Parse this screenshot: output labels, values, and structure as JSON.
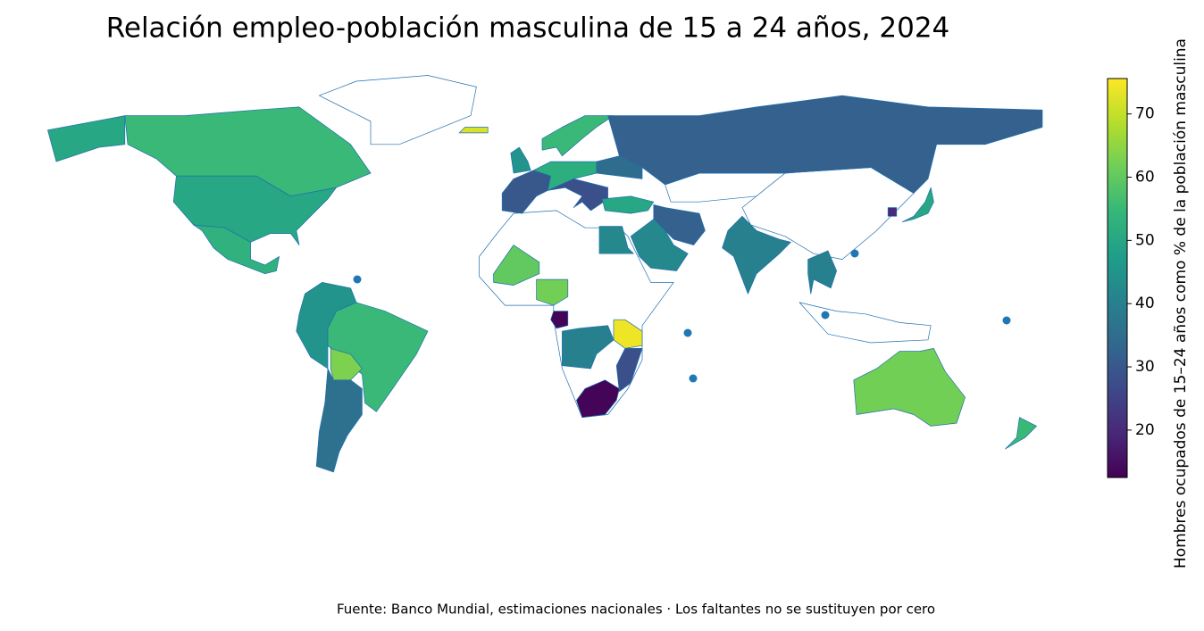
{
  "chart_data": {
    "type": "choropleth",
    "title": "Relación empleo-población masculina de 15 a 24 años, 2024",
    "colorbar_label": "Hombres ocupados de 15–24 años como % de la población masculina",
    "source": "Fuente: Banco Mundial, estimaciones nacionales · Los faltantes no se sustituyen por cero",
    "colormap": "viridis",
    "clim": [
      12.5,
      75.6
    ],
    "cticks": [
      20,
      30,
      40,
      50,
      60,
      70
    ],
    "values": [
      55,
      50,
      53,
      45,
      55,
      63,
      36,
      30,
      52,
      28,
      55,
      45,
      72,
      50,
      35,
      32,
      32,
      42,
      40,
      40,
      50,
      20,
      42,
      60,
      62,
      13,
      74,
      40,
      28,
      13,
      62,
      55
    ]
  }
}
